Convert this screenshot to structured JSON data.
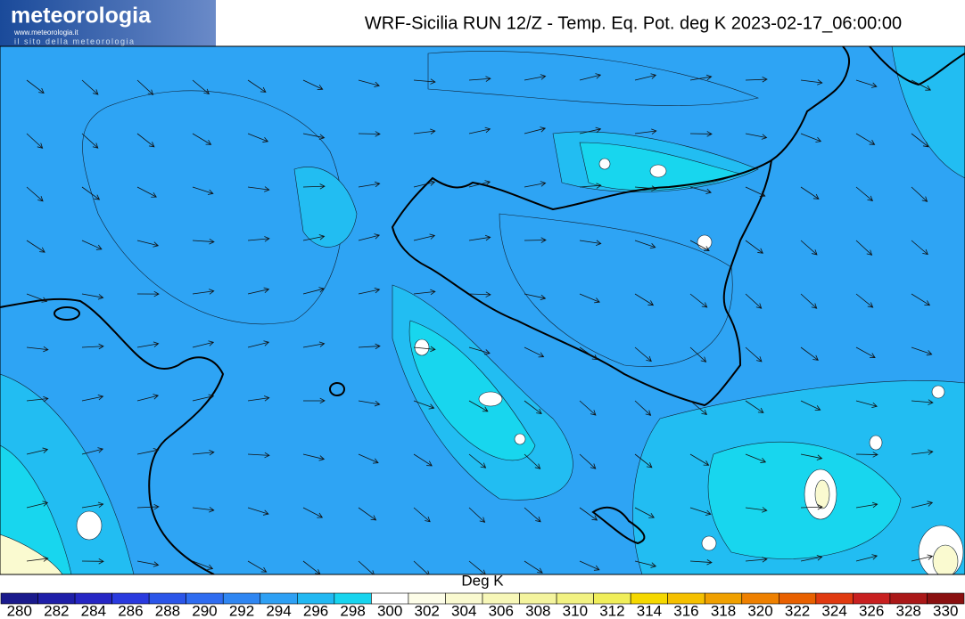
{
  "logo": {
    "name": "meteorologia",
    "url": "www.meteorologia.it",
    "tagline": "il sito della meteorologia"
  },
  "title": "WRF-Sicilia RUN 12/Z - Temp. Eq. Pot. deg K 2023-02-17_06:00:00",
  "legend": {
    "label": "Deg K",
    "ticks": [
      280,
      282,
      284,
      286,
      288,
      290,
      292,
      294,
      296,
      298,
      300,
      302,
      304,
      306,
      308,
      310,
      312,
      314,
      316,
      318,
      320,
      322,
      324,
      326,
      328,
      330
    ],
    "colors": [
      "#1a1a8c",
      "#1f1fa8",
      "#2626c4",
      "#2a3ade",
      "#2b55e8",
      "#2f6cf0",
      "#2f86f2",
      "#2ea0f4",
      "#22b8f2",
      "#18d4ee",
      "#ffffff",
      "#fdfde8",
      "#fafad0",
      "#f7f7b8",
      "#f4f49e",
      "#f2f282",
      "#f0ee5a",
      "#f5d800",
      "#f5c000",
      "#f0a000",
      "#ee8000",
      "#e86000",
      "#e03a10",
      "#c82020",
      "#aa1818",
      "#8a1010"
    ]
  }
}
